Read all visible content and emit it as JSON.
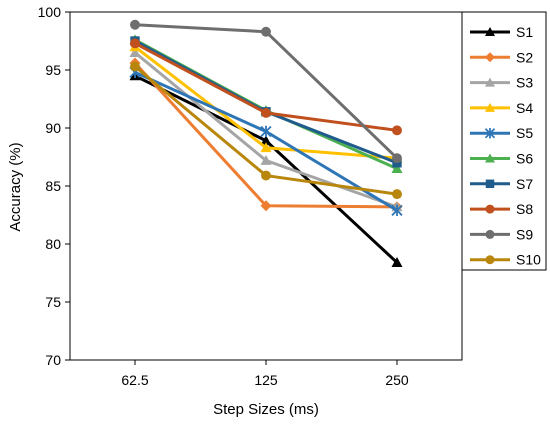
{
  "chart_data": {
    "type": "line",
    "title": "",
    "xlabel": "Step Sizes (ms)",
    "ylabel": "Accuracy (%)",
    "categories": [
      "62.5",
      "125",
      "250"
    ],
    "ylim": [
      70,
      100
    ],
    "yticks": [
      70,
      75,
      80,
      85,
      90,
      95,
      100
    ],
    "grid": false,
    "legend": "right",
    "series": [
      {
        "name": "S1",
        "values": [
          94.5,
          88.9,
          78.4
        ],
        "color": "#000000",
        "marker": "triangle"
      },
      {
        "name": "S2",
        "values": [
          95.6,
          83.3,
          83.2
        ],
        "color": "#ED7D31",
        "marker": "diamond"
      },
      {
        "name": "S3",
        "values": [
          96.5,
          87.2,
          83.2
        ],
        "color": "#A5A5A5",
        "marker": "triangle"
      },
      {
        "name": "S4",
        "values": [
          97.0,
          88.3,
          87.4
        ],
        "color": "#FFC000",
        "marker": "triangle"
      },
      {
        "name": "S5",
        "values": [
          94.8,
          89.7,
          82.9
        ],
        "color": "#2E75B6",
        "marker": "star"
      },
      {
        "name": "S6",
        "values": [
          97.6,
          91.5,
          86.5
        ],
        "color": "#4CAF50",
        "marker": "triangle"
      },
      {
        "name": "S7",
        "values": [
          97.5,
          91.4,
          87.0
        ],
        "color": "#1F5C8B",
        "marker": "square"
      },
      {
        "name": "S8",
        "values": [
          97.3,
          91.3,
          89.8
        ],
        "color": "#C0501E",
        "marker": "circle"
      },
      {
        "name": "S9",
        "values": [
          98.9,
          98.3,
          87.4
        ],
        "color": "#6E6E6E",
        "marker": "circle"
      },
      {
        "name": "S10",
        "values": [
          95.3,
          85.9,
          84.3
        ],
        "color": "#B8860B",
        "marker": "circle"
      }
    ]
  }
}
